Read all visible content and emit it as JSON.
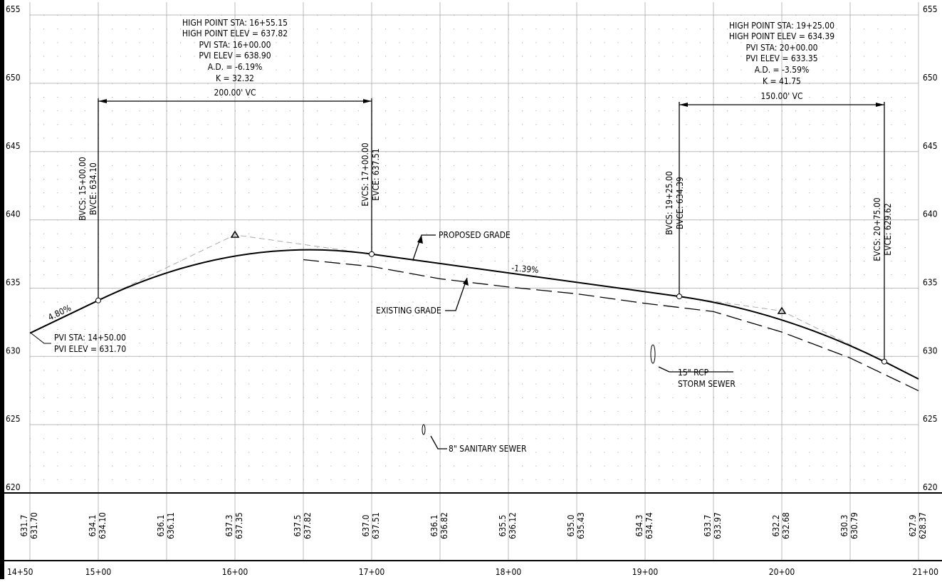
{
  "axis": {
    "elevations": [
      "655",
      "650",
      "645",
      "640",
      "635",
      "630",
      "625",
      "620"
    ],
    "stations": [
      "14+50",
      "15+00",
      "16+00",
      "17+00",
      "18+00",
      "19+00",
      "20+00",
      "21+00"
    ]
  },
  "vertical_curves": [
    {
      "high_point_sta": "HIGH POINT STA: 16+55.15",
      "high_point_elev": "HIGH POINT ELEV = 637.82",
      "pvi_sta": "PVI STA: 16+00.00",
      "pvi_elev": "PVI ELEV = 638.90",
      "ad": "A.D. = -6.19%",
      "k": "K = 32.32",
      "length": "200.00' VC",
      "bvc_sta": "BVCS: 15+00.00",
      "bvc_elev": "BVCE: 634.10",
      "evc_sta": "EVCS: 17+00.00",
      "evc_elev": "EVCE: 637.51"
    },
    {
      "high_point_sta": "HIGH POINT STA: 19+25.00",
      "high_point_elev": "HIGH POINT ELEV = 634.39",
      "pvi_sta": "PVI STA: 20+00.00",
      "pvi_elev": "PVI ELEV = 633.35",
      "ad": "A.D. = -3.59%",
      "k": "K = 41.75",
      "length": "150.00' VC",
      "bvc_sta": "BVCS: 19+25.00",
      "bvc_elev": "BVCE: 634.39",
      "evc_sta": "EVCS: 20+75.00",
      "evc_elev": "EVCE: 629.62"
    }
  ],
  "start_pvi": {
    "sta": "PVI STA: 14+50.00",
    "elev": "PVI ELEV = 631.70"
  },
  "grades": [
    "4.80%",
    "-1.39%"
  ],
  "labels": {
    "proposed": "PROPOSED GRADE",
    "existing": "EXISTING GRADE",
    "storm": [
      "15\" RCP",
      "STORM SEWER"
    ],
    "sanitary": "8\" SANITARY SEWER"
  },
  "profile": {
    "existing": [
      "631.7",
      "634.1",
      "636.1",
      "637.3",
      "637.5",
      "637.0",
      "636.1",
      "635.5",
      "635.0",
      "634.3",
      "633.7",
      "632.2",
      "630.3",
      "627.9"
    ],
    "proposed": [
      "631.70",
      "634.10",
      "636.11",
      "637.35",
      "637.82",
      "637.51",
      "636.82",
      "636.12",
      "635.43",
      "634.74",
      "633.97",
      "632.68",
      "630.79",
      "628.37"
    ]
  }
}
